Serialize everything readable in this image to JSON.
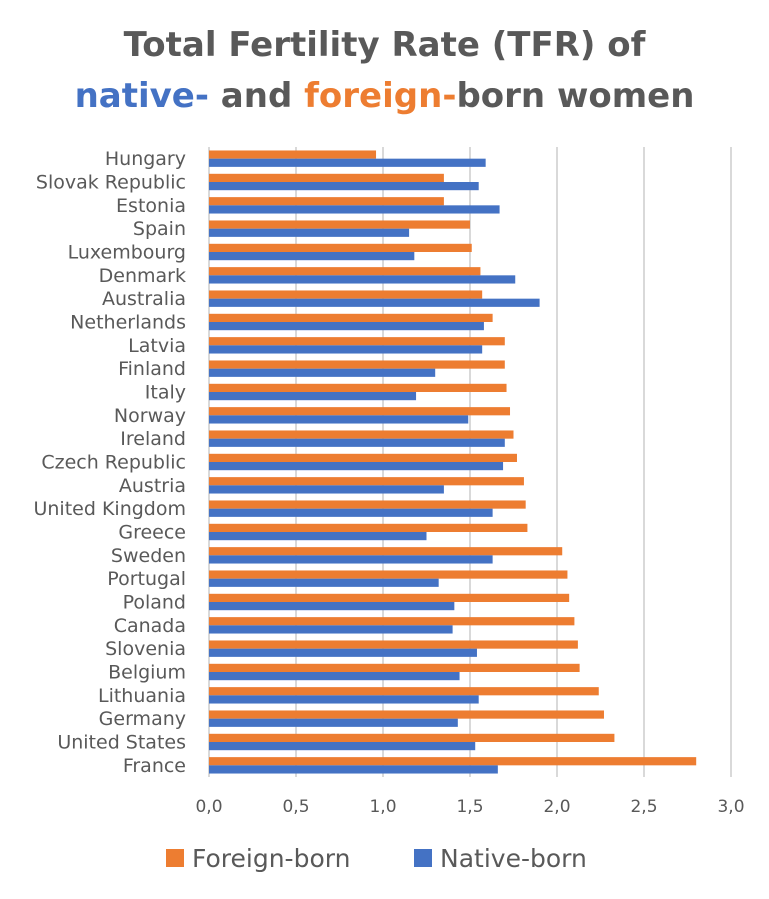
{
  "chart_data": {
    "type": "bar",
    "orientation": "horizontal",
    "title": {
      "line1": "Total Fertility Rate (TFR) of",
      "line2": [
        {
          "text": "native-",
          "color": "#4472C4"
        },
        {
          "text": " and ",
          "color": "#595959"
        },
        {
          "text": "foreign-",
          "color": "#ED7D31"
        },
        {
          "text": "born women",
          "color": "#595959"
        }
      ]
    },
    "categories": [
      "Hungary",
      "Slovak Republic",
      "Estonia",
      "Spain",
      "Luxembourg",
      "Denmark",
      "Australia",
      "Netherlands",
      "Latvia",
      "Finland",
      "Italy",
      "Norway",
      "Ireland",
      "Czech Republic",
      "Austria",
      "United Kingdom",
      "Greece",
      "Sweden",
      "Portugal",
      "Poland",
      "Canada",
      "Slovenia",
      "Belgium",
      "Lithuania",
      "Germany",
      "United States",
      "France"
    ],
    "series": [
      {
        "name": "Foreign-born",
        "color": "#ED7D31",
        "values": [
          0.96,
          1.35,
          1.35,
          1.5,
          1.51,
          1.56,
          1.57,
          1.63,
          1.7,
          1.7,
          1.71,
          1.73,
          1.75,
          1.77,
          1.81,
          1.82,
          1.83,
          2.03,
          2.06,
          2.07,
          2.1,
          2.12,
          2.13,
          2.24,
          2.27,
          2.33,
          2.8
        ]
      },
      {
        "name": "Native-born",
        "color": "#4472C4",
        "values": [
          1.59,
          1.55,
          1.67,
          1.15,
          1.18,
          1.76,
          1.9,
          1.58,
          1.57,
          1.3,
          1.19,
          1.49,
          1.7,
          1.69,
          1.35,
          1.63,
          1.25,
          1.63,
          1.32,
          1.41,
          1.4,
          1.54,
          1.44,
          1.55,
          1.43,
          1.53,
          1.66
        ]
      }
    ],
    "xlim": [
      0,
      3
    ],
    "xticks": [
      "0,0",
      "0,5",
      "1,0",
      "1,5",
      "2,0",
      "2,5",
      "3,0"
    ],
    "grid": true,
    "legend_position": "bottom"
  }
}
